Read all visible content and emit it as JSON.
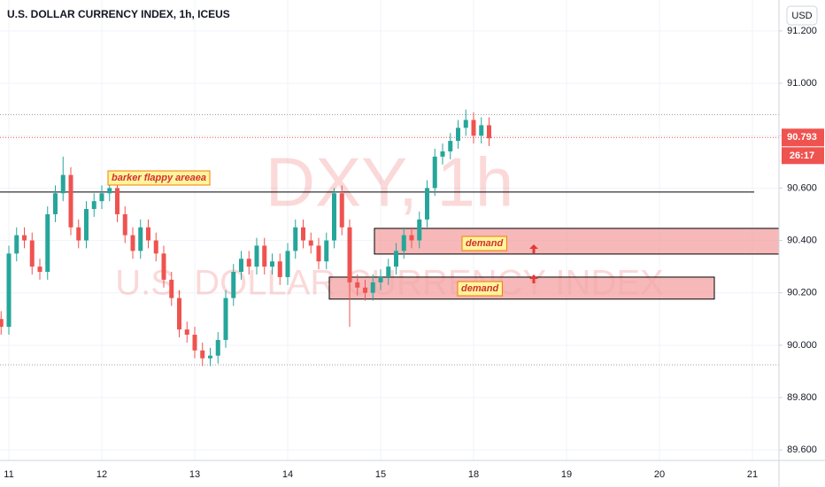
{
  "chart_data": {
    "type": "candlestick",
    "title": "U.S. DOLLAR CURRENCY INDEX, 1h, ICEUS",
    "watermark_symbol": "DXY, 1h",
    "watermark_name": "U.S. DOLLAR CURRENCY INDEX",
    "currency": "USD",
    "up_color": "#26a69a",
    "down_color": "#ef5350",
    "categories": [
      null,
      "11",
      null,
      null,
      null,
      null,
      null,
      null,
      null,
      null,
      null,
      null,
      null,
      "12",
      null,
      null,
      null,
      null,
      null,
      null,
      null,
      null,
      null,
      null,
      null,
      "13",
      null,
      null,
      null,
      null,
      null,
      null,
      null,
      null,
      null,
      null,
      null,
      "14",
      null,
      null,
      null,
      null,
      null,
      null,
      null,
      null,
      null,
      null,
      null,
      "15",
      null,
      null,
      null,
      null,
      null,
      null,
      null,
      null,
      null,
      null,
      null,
      "18",
      null,
      null,
      null,
      null,
      null,
      null,
      null,
      null,
      null,
      null,
      null,
      "19",
      null,
      null,
      null,
      null,
      null,
      null,
      null,
      null,
      null,
      null,
      null,
      "20",
      null,
      null,
      null,
      null,
      null,
      null,
      null,
      null,
      null,
      null,
      null,
      "21",
      null
    ],
    "open": [
      90.1,
      90.07,
      90.35,
      90.42,
      90.4,
      90.3,
      90.28,
      90.5,
      90.58,
      90.65,
      90.45,
      90.4,
      90.52,
      90.55,
      90.58,
      90.6,
      90.5,
      90.42,
      90.36,
      90.45,
      90.4,
      90.35,
      90.25,
      90.18,
      90.06,
      90.04,
      89.98,
      89.95,
      89.96,
      90.02,
      90.18,
      90.28,
      90.33,
      90.3,
      90.38,
      90.3,
      90.32,
      90.26,
      90.36,
      90.45,
      90.4,
      90.38,
      90.32,
      90.4,
      90.58,
      90.45,
      90.24,
      90.22,
      90.2,
      90.24,
      90.26,
      90.3,
      90.36,
      90.42,
      90.4,
      90.48,
      90.6,
      90.72,
      90.74,
      90.78,
      90.83,
      90.86,
      90.8,
      90.84,
      null,
      null,
      null,
      null,
      null,
      null,
      null,
      null,
      null,
      null,
      null,
      null,
      null,
      null,
      null,
      null,
      null,
      null,
      null,
      null,
      null,
      null,
      null,
      null,
      null,
      null,
      null,
      null,
      null,
      null,
      null,
      null,
      null,
      null,
      null
    ],
    "high": [
      90.13,
      90.38,
      90.45,
      90.45,
      90.43,
      90.33,
      90.53,
      90.61,
      90.72,
      90.68,
      90.48,
      90.55,
      90.58,
      90.61,
      90.63,
      90.63,
      90.53,
      90.45,
      90.48,
      90.48,
      90.43,
      90.38,
      90.28,
      90.21,
      90.09,
      90.07,
      90.01,
      89.99,
      90.05,
      90.21,
      90.31,
      90.36,
      90.36,
      90.41,
      90.41,
      90.35,
      90.35,
      90.39,
      90.48,
      90.48,
      90.43,
      90.41,
      90.43,
      90.6,
      90.61,
      90.48,
      90.27,
      90.25,
      90.27,
      90.29,
      90.33,
      90.39,
      90.45,
      90.45,
      90.51,
      90.63,
      90.75,
      90.77,
      90.81,
      90.86,
      90.9,
      90.89,
      90.87,
      90.87,
      null,
      null,
      null,
      null,
      null,
      null,
      null,
      null,
      null,
      null,
      null,
      null,
      null,
      null,
      null,
      null,
      null,
      null,
      null,
      null,
      null,
      null,
      null,
      null,
      null,
      null,
      null,
      null,
      null,
      null,
      null,
      null,
      null,
      null,
      null
    ],
    "low": [
      90.04,
      90.04,
      90.32,
      90.37,
      90.27,
      90.25,
      90.25,
      90.47,
      90.55,
      90.42,
      90.37,
      90.37,
      90.49,
      90.52,
      90.55,
      90.47,
      90.39,
      90.33,
      90.33,
      90.37,
      90.32,
      90.22,
      90.15,
      90.03,
      90.01,
      89.95,
      89.92,
      89.92,
      89.93,
      89.99,
      90.15,
      90.25,
      90.27,
      90.27,
      90.27,
      90.27,
      90.23,
      90.23,
      90.33,
      90.37,
      90.35,
      90.29,
      90.29,
      90.37,
      90.42,
      90.07,
      90.19,
      90.17,
      90.17,
      90.21,
      90.23,
      90.27,
      90.33,
      90.37,
      90.37,
      90.45,
      90.57,
      90.69,
      90.71,
      90.75,
      90.8,
      90.77,
      90.77,
      90.76,
      null,
      null,
      null,
      null,
      null,
      null,
      null,
      null,
      null,
      null,
      null,
      null,
      null,
      null,
      null,
      null,
      null,
      null,
      null,
      null,
      null,
      null,
      null,
      null,
      null,
      null,
      null,
      null,
      null,
      null,
      null,
      null,
      null,
      null,
      null
    ],
    "close": [
      90.07,
      90.35,
      90.42,
      90.4,
      90.3,
      90.28,
      90.5,
      90.58,
      90.65,
      90.45,
      90.4,
      90.52,
      90.55,
      90.58,
      90.6,
      90.5,
      90.42,
      90.36,
      90.45,
      90.4,
      90.35,
      90.25,
      90.18,
      90.06,
      90.04,
      89.98,
      89.95,
      89.96,
      90.02,
      90.18,
      90.28,
      90.33,
      90.3,
      90.38,
      90.3,
      90.32,
      90.26,
      90.36,
      90.45,
      90.4,
      90.38,
      90.32,
      90.4,
      90.58,
      90.45,
      90.24,
      90.22,
      90.2,
      90.24,
      90.26,
      90.3,
      90.36,
      90.42,
      90.4,
      90.48,
      90.6,
      90.72,
      90.74,
      90.78,
      90.83,
      90.86,
      90.8,
      90.84,
      90.79,
      null,
      null,
      null,
      null,
      null,
      null,
      null,
      null,
      null,
      null,
      null,
      null,
      null,
      null,
      null,
      null,
      null,
      null,
      null,
      null,
      null,
      null,
      null,
      null,
      null,
      null,
      null,
      null,
      null,
      null,
      null,
      null,
      null,
      null,
      null
    ],
    "ylim": [
      89.56,
      91.318
    ],
    "yticks": [
      {
        "value": 89.6,
        "label": "89.600"
      },
      {
        "value": 89.8,
        "label": "89.800"
      },
      {
        "value": 90.0,
        "label": "90.000"
      },
      {
        "value": 90.2,
        "label": "90.200"
      },
      {
        "value": 90.4,
        "label": "90.400"
      },
      {
        "value": 90.6,
        "label": "90.600"
      },
      {
        "value": 90.8,
        "label": "90.800"
      },
      {
        "value": 91.0,
        "label": "91.000"
      },
      {
        "value": 91.2,
        "label": "91.200"
      }
    ],
    "grid": true,
    "last_price": 90.793,
    "countdown": "26:17",
    "levels": [
      {
        "value": 90.585,
        "color": "#000000",
        "style": "solid"
      },
      {
        "value": 90.88,
        "color": "#9e9e9e",
        "style": "dotted"
      },
      {
        "value": 89.925,
        "color": "#9e9e9e",
        "style": "dotted"
      }
    ],
    "annotations": [
      {
        "text": "barker flappy areaea"
      }
    ],
    "zones": [
      {
        "label": "demand",
        "top": 90.446,
        "bottom": 90.348,
        "color": "#f4a6a6"
      },
      {
        "label": "demand",
        "top": 90.26,
        "bottom": 90.176,
        "color": "#f4a6a6"
      }
    ]
  }
}
